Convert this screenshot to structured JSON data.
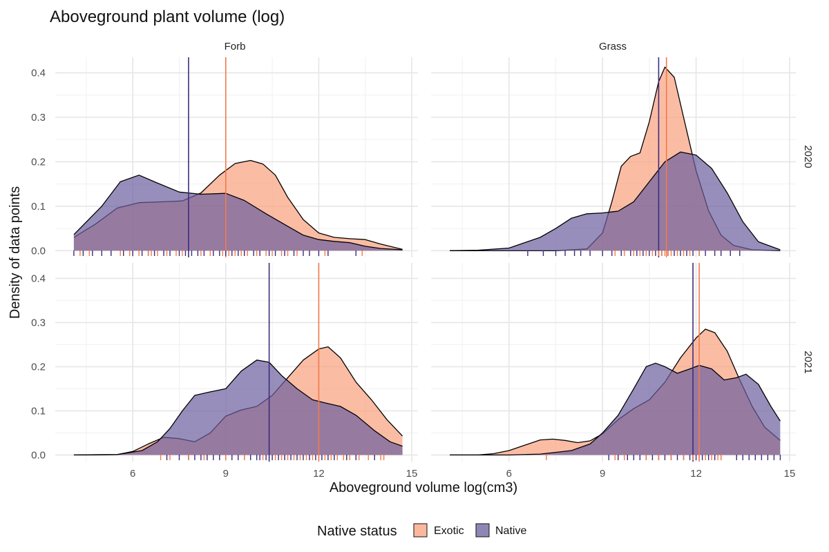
{
  "chart_data": {
    "type": "area",
    "title": "Aboveground plant volume (log)",
    "xlabel": "Aboveground volume log(cm3)",
    "ylabel": "Density of data points",
    "xlim": [
      3.5,
      15.2
    ],
    "ylim": [
      -0.015,
      0.435
    ],
    "x_ticks": [
      6,
      9,
      12,
      15
    ],
    "y_ticks": [
      0.0,
      0.1,
      0.2,
      0.3,
      0.4
    ],
    "grid": true,
    "facet_columns": [
      "Forb",
      "Grass"
    ],
    "facet_rows": [
      "2020",
      "2021"
    ],
    "legend": {
      "title": "Native status",
      "position": "bottom",
      "entries": [
        {
          "name": "Exotic",
          "color": "#F9A07E"
        },
        {
          "name": "Native",
          "color": "#6B5E9E"
        }
      ]
    },
    "panels": [
      {
        "column": "Forb",
        "row": "2020",
        "series": [
          {
            "name": "Native",
            "points": [
              [
                4.1,
                0.036
              ],
              [
                5.0,
                0.1
              ],
              [
                5.6,
                0.155
              ],
              [
                6.2,
                0.17
              ],
              [
                6.8,
                0.152
              ],
              [
                7.5,
                0.132
              ],
              [
                8.2,
                0.127
              ],
              [
                9.0,
                0.129
              ],
              [
                9.6,
                0.113
              ],
              [
                10.3,
                0.083
              ],
              [
                11.0,
                0.055
              ],
              [
                11.5,
                0.035
              ],
              [
                12.0,
                0.025
              ],
              [
                12.5,
                0.021
              ],
              [
                13.0,
                0.018
              ],
              [
                13.5,
                0.01
              ],
              [
                14.0,
                0.005
              ],
              [
                14.7,
                0.002
              ]
            ]
          },
          {
            "name": "Exotic",
            "points": [
              [
                4.1,
                0.03
              ],
              [
                4.8,
                0.06
              ],
              [
                5.5,
                0.096
              ],
              [
                6.2,
                0.108
              ],
              [
                7.0,
                0.11
              ],
              [
                7.6,
                0.112
              ],
              [
                8.2,
                0.13
              ],
              [
                8.8,
                0.17
              ],
              [
                9.3,
                0.196
              ],
              [
                9.8,
                0.203
              ],
              [
                10.2,
                0.195
              ],
              [
                10.6,
                0.17
              ],
              [
                11.0,
                0.12
              ],
              [
                11.5,
                0.07
              ],
              [
                12.0,
                0.04
              ],
              [
                12.5,
                0.03
              ],
              [
                13.0,
                0.027
              ],
              [
                13.5,
                0.025
              ],
              [
                14.0,
                0.015
              ],
              [
                14.7,
                0.003
              ]
            ]
          }
        ],
        "means": {
          "Native": 7.8,
          "Exotic": 9.0
        },
        "rug": {
          "Exotic": [
            4.3,
            4.6,
            5.6,
            5.9,
            6.2,
            6.5,
            6.6,
            6.8,
            7.1,
            7.4,
            7.6,
            8.2,
            8.5,
            8.9,
            9.1,
            9.3,
            9.5,
            9.7,
            10.0,
            10.3,
            10.5,
            10.8,
            11.0,
            11.3,
            12.2,
            13.4
          ],
          "Native": [
            4.1,
            4.4,
            4.7,
            5.0,
            5.3,
            5.7,
            6.0,
            6.3,
            6.5,
            6.7,
            7.0,
            7.2,
            7.5,
            7.7,
            7.9,
            8.1,
            8.3,
            8.6,
            8.8,
            9.0,
            9.2,
            9.4,
            9.6,
            9.9,
            10.1,
            10.4,
            10.6,
            10.9,
            11.2,
            11.5,
            11.7,
            12.0,
            12.3,
            13.2
          ]
        }
      },
      {
        "column": "Grass",
        "row": "2020",
        "series": [
          {
            "name": "Native",
            "points": [
              [
                4.1,
                0.0
              ],
              [
                5.0,
                0.001
              ],
              [
                6.0,
                0.006
              ],
              [
                7.0,
                0.03
              ],
              [
                7.5,
                0.05
              ],
              [
                8.0,
                0.073
              ],
              [
                8.5,
                0.083
              ],
              [
                9.0,
                0.085
              ],
              [
                9.5,
                0.089
              ],
              [
                10.0,
                0.11
              ],
              [
                10.5,
                0.155
              ],
              [
                11.0,
                0.2
              ],
              [
                11.5,
                0.222
              ],
              [
                12.0,
                0.215
              ],
              [
                12.5,
                0.185
              ],
              [
                13.0,
                0.13
              ],
              [
                13.5,
                0.065
              ],
              [
                14.0,
                0.02
              ],
              [
                14.7,
                0.002
              ]
            ]
          },
          {
            "name": "Exotic",
            "points": [
              [
                4.1,
                0.0
              ],
              [
                7.5,
                0.0
              ],
              [
                8.5,
                0.004
              ],
              [
                9.0,
                0.04
              ],
              [
                9.3,
                0.11
              ],
              [
                9.6,
                0.19
              ],
              [
                9.9,
                0.212
              ],
              [
                10.2,
                0.22
              ],
              [
                10.5,
                0.29
              ],
              [
                10.8,
                0.38
              ],
              [
                11.0,
                0.413
              ],
              [
                11.3,
                0.39
              ],
              [
                11.6,
                0.3
              ],
              [
                12.0,
                0.18
              ],
              [
                12.4,
                0.09
              ],
              [
                12.8,
                0.035
              ],
              [
                13.2,
                0.012
              ],
              [
                13.8,
                0.002
              ],
              [
                14.7,
                0.0
              ]
            ]
          }
        ],
        "means": {
          "Native": 10.8,
          "Exotic": 11.05
        },
        "rug": {
          "Exotic": [
            9.4,
            9.7,
            10.0,
            10.2,
            10.4,
            10.6,
            10.8,
            10.9,
            11.0,
            11.1,
            11.2,
            11.4,
            11.6,
            11.8,
            12.1
          ],
          "Native": [
            6.6,
            7.1,
            7.5,
            7.8,
            8.1,
            8.3,
            8.6,
            9.0,
            9.3,
            9.6,
            9.9,
            10.1,
            10.3,
            10.5,
            10.7,
            10.9,
            11.1,
            11.3,
            11.5,
            11.7,
            11.9,
            12.1,
            12.3,
            12.6,
            12.8,
            13.1,
            13.4
          ]
        }
      },
      {
        "column": "Forb",
        "row": "2021",
        "series": [
          {
            "name": "Native",
            "points": [
              [
                4.1,
                0.0
              ],
              [
                5.5,
                0.001
              ],
              [
                6.3,
                0.01
              ],
              [
                6.8,
                0.03
              ],
              [
                7.2,
                0.06
              ],
              [
                7.6,
                0.1
              ],
              [
                8.0,
                0.135
              ],
              [
                8.5,
                0.143
              ],
              [
                9.0,
                0.15
              ],
              [
                9.5,
                0.19
              ],
              [
                10.0,
                0.215
              ],
              [
                10.4,
                0.21
              ],
              [
                10.8,
                0.18
              ],
              [
                11.3,
                0.15
              ],
              [
                11.8,
                0.125
              ],
              [
                12.2,
                0.118
              ],
              [
                12.7,
                0.11
              ],
              [
                13.2,
                0.09
              ],
              [
                13.8,
                0.055
              ],
              [
                14.3,
                0.03
              ],
              [
                14.7,
                0.02
              ]
            ]
          },
          {
            "name": "Exotic",
            "points": [
              [
                4.1,
                0.0
              ],
              [
                5.5,
                0.001
              ],
              [
                6.0,
                0.008
              ],
              [
                6.5,
                0.025
              ],
              [
                7.0,
                0.04
              ],
              [
                7.5,
                0.037
              ],
              [
                8.0,
                0.03
              ],
              [
                8.5,
                0.05
              ],
              [
                9.0,
                0.088
              ],
              [
                9.5,
                0.102
              ],
              [
                10.0,
                0.11
              ],
              [
                10.5,
                0.135
              ],
              [
                11.0,
                0.175
              ],
              [
                11.5,
                0.215
              ],
              [
                12.0,
                0.24
              ],
              [
                12.3,
                0.245
              ],
              [
                12.7,
                0.22
              ],
              [
                13.2,
                0.165
              ],
              [
                13.7,
                0.125
              ],
              [
                14.2,
                0.08
              ],
              [
                14.7,
                0.043
              ]
            ]
          }
        ],
        "means": {
          "Native": 10.4,
          "Exotic": 12.0
        },
        "rug": {
          "Exotic": [
            6.9,
            7.2,
            7.8,
            8.3,
            9.0,
            9.6,
            10.2,
            10.6,
            10.8,
            11.0,
            11.2,
            11.4,
            11.6,
            11.8,
            12.0,
            12.2,
            12.4,
            12.6,
            12.8,
            13.0,
            13.3,
            13.6,
            14.0,
            14.1
          ],
          "Native": [
            7.1,
            7.5,
            7.8,
            8.0,
            8.2,
            8.4,
            8.6,
            8.8,
            9.0,
            9.2,
            9.4,
            9.6,
            9.8,
            10.0,
            10.1,
            10.3,
            10.5,
            10.7,
            10.9,
            11.1,
            11.3,
            11.5,
            11.7,
            11.9,
            12.1,
            12.3,
            12.5,
            12.9,
            13.2,
            13.8
          ]
        }
      },
      {
        "column": "Grass",
        "row": "2021",
        "series": [
          {
            "name": "Native",
            "points": [
              [
                4.1,
                0.0
              ],
              [
                6.0,
                0.0
              ],
              [
                7.0,
                0.002
              ],
              [
                8.0,
                0.01
              ],
              [
                8.6,
                0.025
              ],
              [
                9.0,
                0.05
              ],
              [
                9.5,
                0.09
              ],
              [
                10.0,
                0.15
              ],
              [
                10.4,
                0.2
              ],
              [
                10.7,
                0.208
              ],
              [
                11.0,
                0.2
              ],
              [
                11.4,
                0.185
              ],
              [
                11.8,
                0.195
              ],
              [
                12.1,
                0.203
              ],
              [
                12.5,
                0.195
              ],
              [
                12.9,
                0.17
              ],
              [
                13.3,
                0.175
              ],
              [
                13.6,
                0.183
              ],
              [
                14.0,
                0.16
              ],
              [
                14.4,
                0.11
              ],
              [
                14.7,
                0.077
              ]
            ]
          },
          {
            "name": "Exotic",
            "points": [
              [
                4.1,
                0.0
              ],
              [
                5.0,
                0.0
              ],
              [
                5.5,
                0.003
              ],
              [
                6.0,
                0.01
              ],
              [
                6.5,
                0.022
              ],
              [
                7.0,
                0.034
              ],
              [
                7.4,
                0.036
              ],
              [
                7.8,
                0.033
              ],
              [
                8.2,
                0.028
              ],
              [
                8.6,
                0.032
              ],
              [
                9.0,
                0.048
              ],
              [
                9.5,
                0.08
              ],
              [
                10.0,
                0.105
              ],
              [
                10.5,
                0.125
              ],
              [
                11.0,
                0.165
              ],
              [
                11.5,
                0.22
              ],
              [
                12.0,
                0.265
              ],
              [
                12.3,
                0.285
              ],
              [
                12.6,
                0.277
              ],
              [
                13.0,
                0.235
              ],
              [
                13.4,
                0.17
              ],
              [
                13.8,
                0.11
              ],
              [
                14.2,
                0.063
              ],
              [
                14.7,
                0.033
              ]
            ]
          }
        ],
        "means": {
          "Native": 11.9,
          "Exotic": 12.1
        },
        "rug": {
          "Exotic": [
            7.2,
            9.4,
            9.7,
            10.4,
            10.8,
            11.2,
            11.6,
            11.9,
            12.1,
            12.3,
            12.5,
            12.7,
            12.8
          ],
          "Native": [
            9.2,
            9.5,
            9.8,
            10.0,
            10.2,
            10.4,
            10.6,
            10.8,
            11.0,
            11.2,
            11.4,
            11.6,
            11.8,
            12.0,
            12.2,
            12.4,
            12.6,
            12.8,
            13.3,
            13.5,
            13.7,
            13.9,
            14.1,
            14.3,
            14.5,
            14.7
          ]
        }
      }
    ]
  }
}
